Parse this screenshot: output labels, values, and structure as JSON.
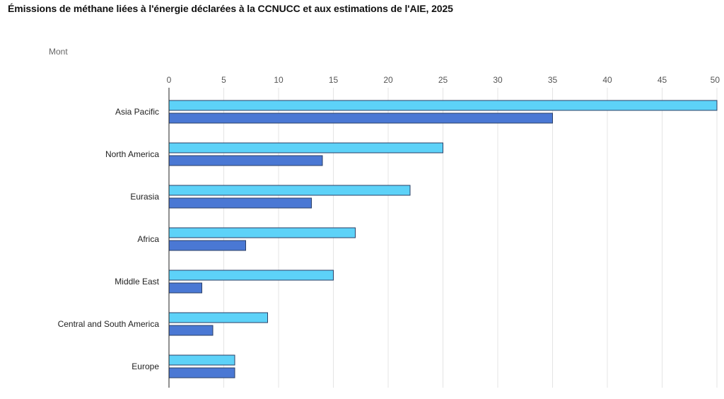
{
  "chart_data": {
    "type": "bar",
    "orientation": "horizontal",
    "title": "Émissions de méthane liées à l'énergie déclarées à la CCNUCC et aux estimations de l'AIE, 2025",
    "unit": "Mont",
    "xlim": [
      0,
      50
    ],
    "x_ticks": [
      0,
      5,
      10,
      15,
      20,
      25,
      30,
      35,
      40,
      45,
      50
    ],
    "x_axis_position": "top",
    "grid": true,
    "categories": [
      "Asia Pacific",
      "North America",
      "Eurasia",
      "Africa",
      "Middle East",
      "Central and South America",
      "Europe"
    ],
    "series": [
      {
        "color": "#5dd2f8",
        "values": [
          50,
          25,
          22,
          17,
          15,
          9,
          6
        ]
      },
      {
        "color": "#4a78d4",
        "values": [
          35,
          14,
          13,
          7,
          3,
          4,
          6
        ]
      }
    ]
  }
}
